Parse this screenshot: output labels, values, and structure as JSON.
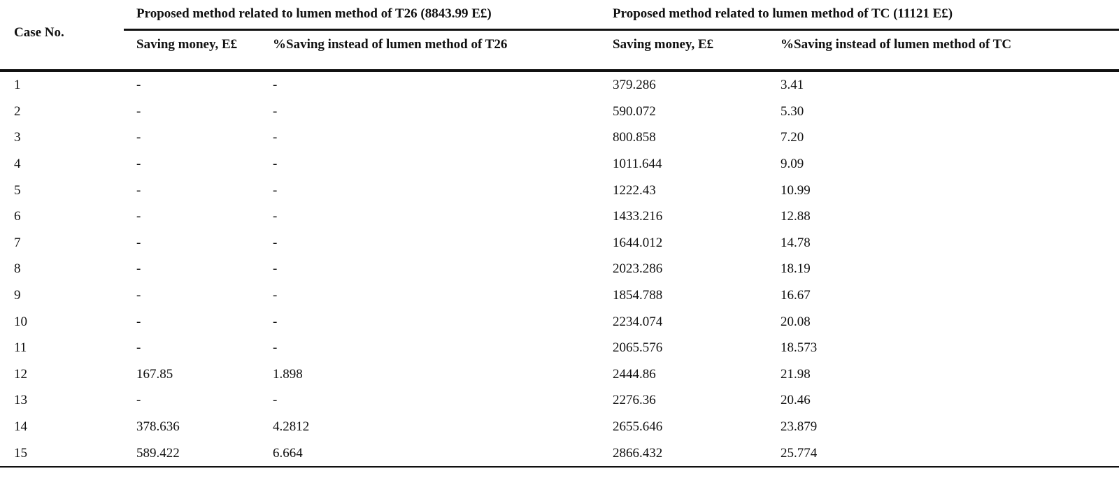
{
  "table": {
    "case_header": "Case No.",
    "group1_header": "Proposed method related to lumen method of T26 (8843.99 E£)",
    "group2_header": "Proposed method related to lumen method of TC (11121 E£)",
    "sub_headers": [
      "Saving money, E£",
      "%Saving instead of lumen method of T26",
      "Saving money, E£",
      "%Saving instead of lumen method of TC"
    ],
    "rows": [
      [
        "1",
        "-",
        "-",
        "379.286",
        "3.41"
      ],
      [
        "2",
        "-",
        "-",
        "590.072",
        "5.30"
      ],
      [
        "3",
        "-",
        "-",
        "800.858",
        "7.20"
      ],
      [
        "4",
        "-",
        "-",
        "1011.644",
        "9.09"
      ],
      [
        "5",
        "-",
        "-",
        "1222.43",
        "10.99"
      ],
      [
        "6",
        "-",
        "-",
        "1433.216",
        "12.88"
      ],
      [
        "7",
        "-",
        "-",
        "1644.012",
        "14.78"
      ],
      [
        "8",
        "-",
        "-",
        "2023.286",
        "18.19"
      ],
      [
        "9",
        "-",
        "-",
        "1854.788",
        "16.67"
      ],
      [
        "10",
        "-",
        "-",
        "2234.074",
        "20.08"
      ],
      [
        "11",
        "-",
        "-",
        "2065.576",
        "18.573"
      ],
      [
        "12",
        "167.85",
        "1.898",
        "2444.86",
        "21.98"
      ],
      [
        "13",
        "-",
        "-",
        "2276.36",
        "20.46"
      ],
      [
        "14",
        "378.636",
        "4.2812",
        "2655.646",
        "23.879"
      ],
      [
        "15",
        "589.422",
        "6.664",
        "2866.432",
        "25.774"
      ]
    ]
  }
}
